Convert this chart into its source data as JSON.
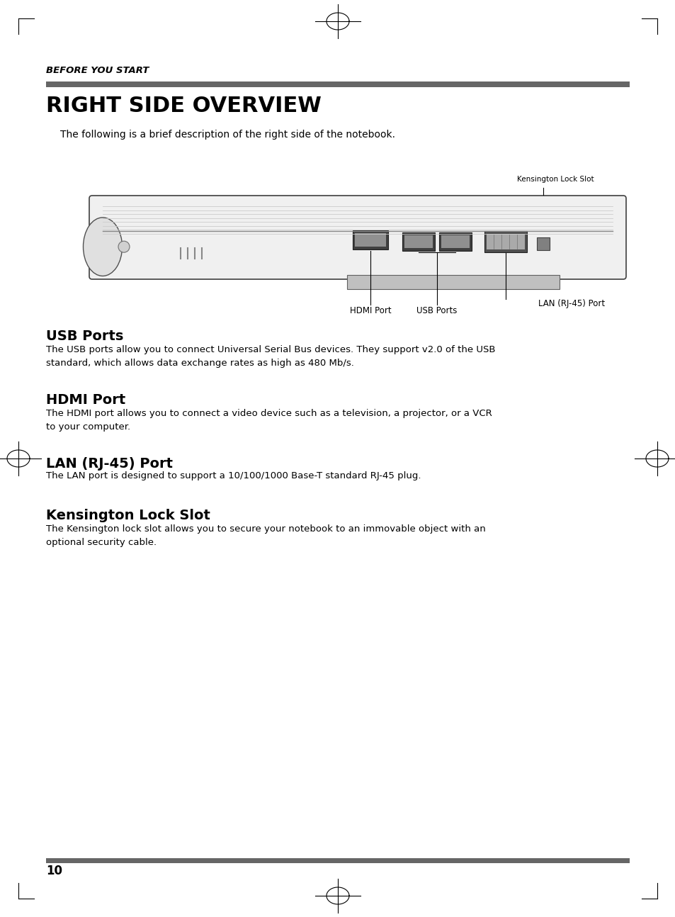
{
  "background_color": "#ffffff",
  "page_number": "10",
  "section_label": "BEFORE YOU START",
  "section_bar_color": "#666666",
  "title": "RIGHT SIDE OVERVIEW",
  "intro_text": "The following is a brief description of the right side of the notebook.",
  "diagram_label_kensington": "Kensington Lock Slot",
  "diagram_label_hdmi": "HDMI Port",
  "diagram_label_usb": "USB Ports",
  "diagram_label_lan": "LAN (RJ-45) Port",
  "sections": [
    {
      "heading": "USB Ports",
      "body": "The USB ports allow you to connect Universal Serial Bus devices. They support v2.0 of the USB\nstandard, which allows data exchange rates as high as 480 Mb/s."
    },
    {
      "heading": "HDMI Port",
      "body": "The HDMI port allows you to connect a video device such as a television, a projector, or a VCR\nto your computer."
    },
    {
      "heading": "LAN (RJ-45) Port",
      "body": "The LAN port is designed to support a 10/100/1000 Base-T standard RJ-45 plug."
    },
    {
      "heading": "Kensington Lock Slot",
      "body": "The Kensington lock slot allows you to secure your notebook to an immovable object with an\noptional security cable."
    }
  ]
}
